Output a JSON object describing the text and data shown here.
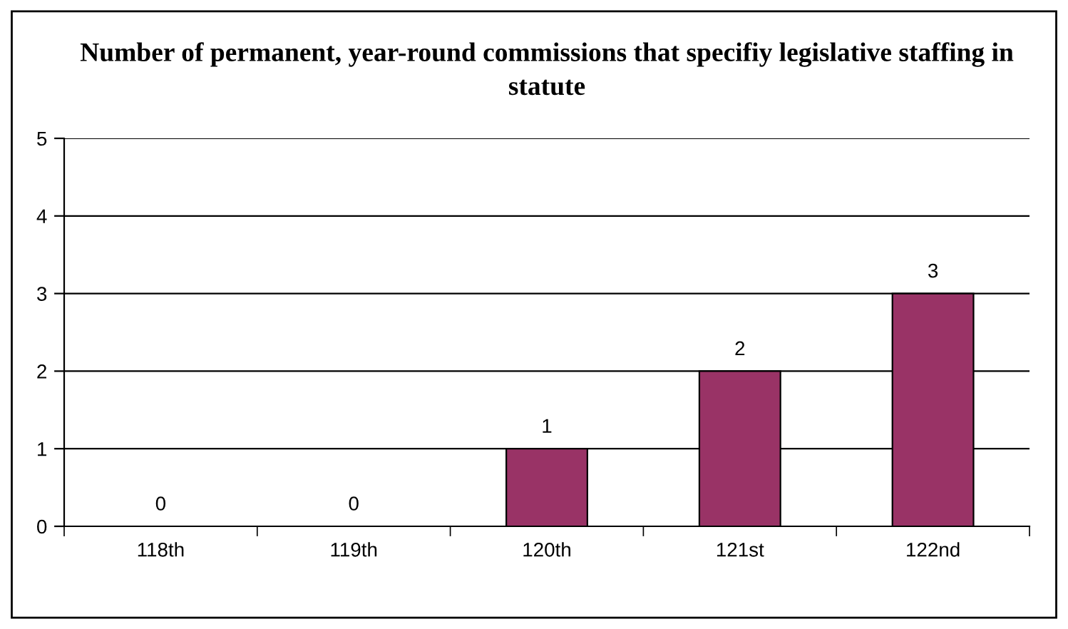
{
  "chart_data": {
    "type": "bar",
    "title": "Number of permanent, year-round commissions that specifiy legislative staffing in statute",
    "categories": [
      "118th",
      "119th",
      "120th",
      "121st",
      "122nd"
    ],
    "values": [
      0,
      0,
      1,
      2,
      3
    ],
    "color": "#993366",
    "ylim": [
      0,
      5
    ],
    "yticks": [
      0,
      1,
      2,
      3,
      4,
      5
    ],
    "grid": "y",
    "data_labels": true
  }
}
